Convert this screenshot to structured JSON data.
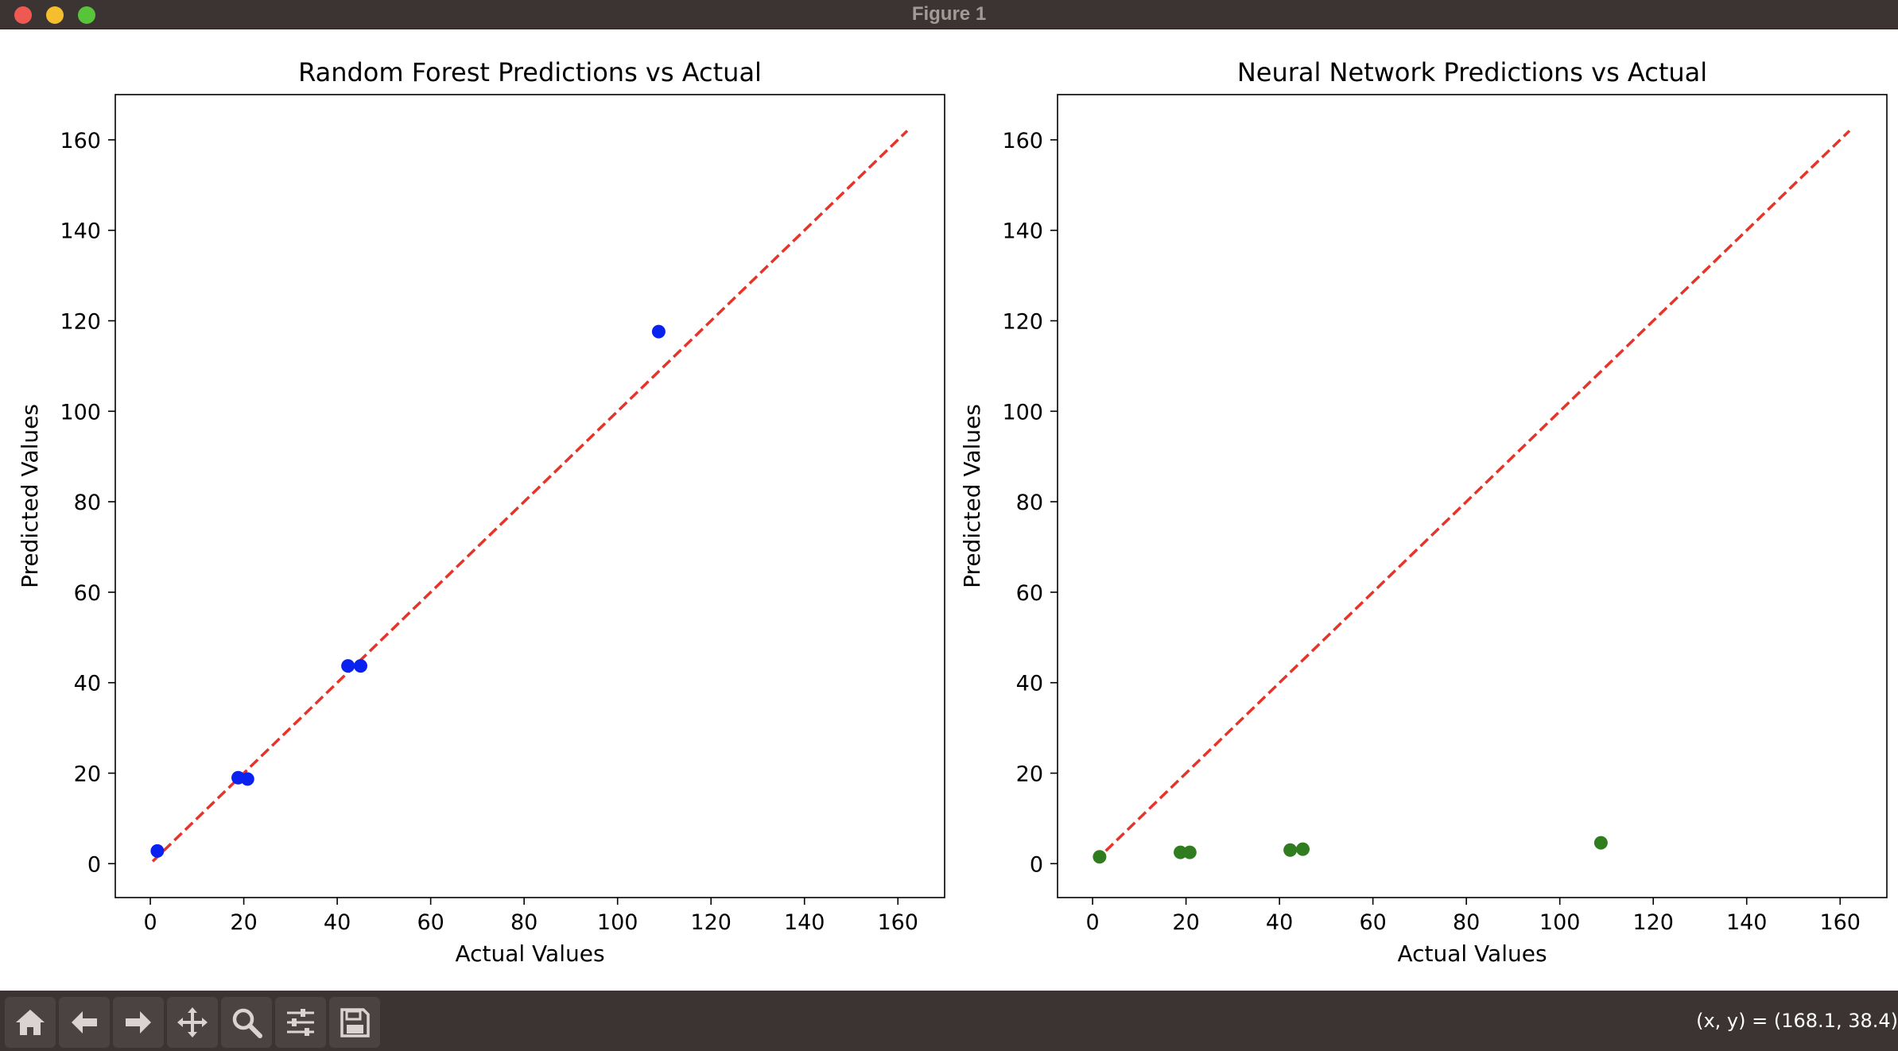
{
  "window": {
    "title": "Figure 1"
  },
  "toolbar": {
    "buttons": [
      {
        "icon": "home-icon"
      },
      {
        "icon": "back-arrow-icon"
      },
      {
        "icon": "forward-arrow-icon"
      },
      {
        "icon": "pan-icon"
      },
      {
        "icon": "zoom-icon"
      },
      {
        "icon": "configure-subplots-icon"
      },
      {
        "icon": "save-icon"
      }
    ],
    "coords_text": "(x, y) = (168.1, 38.4)"
  },
  "chart_data": [
    {
      "type": "scatter",
      "title": "Random Forest Predictions vs Actual",
      "xlabel": "Actual Values",
      "ylabel": "Predicted Values",
      "xlim": [
        -7.5,
        170
      ],
      "ylim": [
        -7.5,
        170
      ],
      "xticks": [
        0,
        20,
        40,
        60,
        80,
        100,
        120,
        140,
        160
      ],
      "yticks": [
        0,
        20,
        40,
        60,
        80,
        100,
        120,
        140,
        160
      ],
      "grid": false,
      "point_color": "#0a22f0",
      "reference_line": {
        "from": [
          0.5,
          0.5
        ],
        "to": [
          162,
          162
        ],
        "color": "#e5352b",
        "style": "dashed"
      },
      "x": [
        1.5,
        18.8,
        20.8,
        42.3,
        45.0,
        108.8
      ],
      "y": [
        2.8,
        19.0,
        18.7,
        43.7,
        43.7,
        117.6
      ]
    },
    {
      "type": "scatter",
      "title": "Neural Network Predictions vs Actual",
      "xlabel": "Actual Values",
      "ylabel": "Predicted Values",
      "xlim": [
        -7.5,
        170
      ],
      "ylim": [
        -7.5,
        170
      ],
      "xticks": [
        0,
        20,
        40,
        60,
        80,
        100,
        120,
        140,
        160
      ],
      "yticks": [
        0,
        20,
        40,
        60,
        80,
        100,
        120,
        140,
        160
      ],
      "grid": false,
      "point_color": "#2f7d1e",
      "reference_line": {
        "from": [
          0.5,
          0.5
        ],
        "to": [
          162,
          162
        ],
        "color": "#e5352b",
        "style": "dashed"
      },
      "x": [
        1.5,
        18.8,
        20.8,
        42.3,
        45.0,
        108.8
      ],
      "y": [
        1.5,
        2.5,
        2.5,
        3.0,
        3.2,
        4.6
      ]
    }
  ]
}
